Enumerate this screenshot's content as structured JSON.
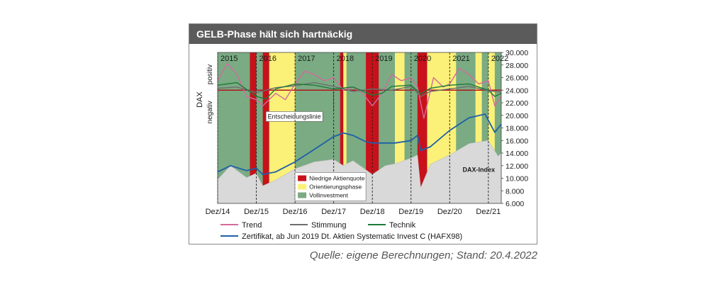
{
  "title": "GELB-Phase hält sich hartnäckig",
  "source": "Quelle: eigene Berechnungen; Stand: 20.4.2022",
  "colors": {
    "red": "#c8111a",
    "yellow": "#fbf178",
    "green": "#7aab83",
    "dax_fill": "#d9d9d9",
    "trend": "#d46a9c",
    "stimmung": "#6e6e6e",
    "technik": "#1d7a3a",
    "zertifikat": "#1f5fa7",
    "decision_line": "#b3141c"
  },
  "chart_data": {
    "type": "line",
    "x_range": [
      "2014-12",
      "2022-04"
    ],
    "ylim": [
      6000,
      30000
    ],
    "y_ticks": [
      "30.000",
      "28.000",
      "26.000",
      "24.000",
      "22.000",
      "20.000",
      "18.000",
      "16.000",
      "14.000",
      "12.000",
      "10.000",
      "8.000",
      "6.000"
    ],
    "x_ticks": [
      "Dez/14",
      "Dez/15",
      "Dez/16",
      "Dez/17",
      "Dez/18",
      "Dez/19",
      "Dez/20",
      "Dez/21"
    ],
    "year_labels": [
      "2015",
      "2016",
      "2017",
      "2018",
      "2019",
      "2020",
      "2021",
      "2022"
    ],
    "y_side_label": "DAX",
    "y_side_positive": "positiv",
    "y_side_negative": "negativ",
    "decision_line_label": "Entscheidungslinie",
    "decision_level": 24000,
    "dax_label": "DAX-Index",
    "phases": [
      {
        "phase": "green",
        "start": "2014-12",
        "end": "2015-10"
      },
      {
        "phase": "red",
        "start": "2015-10",
        "end": "2015-12"
      },
      {
        "phase": "green",
        "start": "2015-12",
        "end": "2016-02"
      },
      {
        "phase": "red",
        "start": "2016-02",
        "end": "2016-04"
      },
      {
        "phase": "yellow",
        "start": "2016-04",
        "end": "2016-12"
      },
      {
        "phase": "green",
        "start": "2016-12",
        "end": "2018-02"
      },
      {
        "phase": "red",
        "start": "2018-02",
        "end": "2018-03"
      },
      {
        "phase": "yellow",
        "start": "2018-03",
        "end": "2018-04"
      },
      {
        "phase": "green",
        "start": "2018-04",
        "end": "2018-10"
      },
      {
        "phase": "red",
        "start": "2018-10",
        "end": "2019-02"
      },
      {
        "phase": "green",
        "start": "2019-02",
        "end": "2019-07"
      },
      {
        "phase": "yellow",
        "start": "2019-07",
        "end": "2019-10"
      },
      {
        "phase": "green",
        "start": "2019-10",
        "end": "2020-02"
      },
      {
        "phase": "red",
        "start": "2020-02",
        "end": "2020-05"
      },
      {
        "phase": "yellow",
        "start": "2020-05",
        "end": "2021-02"
      },
      {
        "phase": "green",
        "start": "2021-02",
        "end": "2021-08"
      },
      {
        "phase": "yellow",
        "start": "2021-08",
        "end": "2021-10"
      },
      {
        "phase": "green",
        "start": "2021-10",
        "end": "2021-12"
      },
      {
        "phase": "yellow",
        "start": "2021-12",
        "end": "2022-02"
      },
      {
        "phase": "green",
        "start": "2022-02",
        "end": "2022-04"
      }
    ],
    "series": [
      {
        "name": "DAX-Index",
        "kind": "area",
        "x": [
          "2014-12",
          "2015-04",
          "2015-09",
          "2015-12",
          "2016-02",
          "2016-06",
          "2016-12",
          "2017-06",
          "2017-12",
          "2018-03",
          "2018-06",
          "2018-12",
          "2019-04",
          "2019-07",
          "2019-12",
          "2020-02",
          "2020-03",
          "2020-06",
          "2020-12",
          "2021-06",
          "2021-12",
          "2022-03",
          "2022-04"
        ],
        "values": [
          9800,
          12000,
          10100,
          10800,
          8800,
          9700,
          11500,
          12600,
          13000,
          12000,
          12800,
          10600,
          12000,
          12300,
          13200,
          13700,
          8500,
          12200,
          13700,
          15500,
          16000,
          13500,
          14000
        ]
      },
      {
        "name": "Zertifikat, ab Jun 2019 Dt. Aktien Systematic Invest C (HAFX98)",
        "kind": "line",
        "x": [
          "2014-12",
          "2015-04",
          "2015-09",
          "2015-12",
          "2016-02",
          "2016-06",
          "2016-12",
          "2017-06",
          "2017-12",
          "2018-03",
          "2018-06",
          "2018-10",
          "2018-12",
          "2019-04",
          "2019-07",
          "2019-12",
          "2020-02",
          "2020-03",
          "2020-06",
          "2020-12",
          "2021-06",
          "2021-11",
          "2021-12",
          "2022-02",
          "2022-04"
        ],
        "values": [
          11000,
          12000,
          11200,
          11600,
          10600,
          11000,
          12600,
          14600,
          16600,
          17200,
          16800,
          15800,
          15600,
          15600,
          15600,
          16000,
          16800,
          14400,
          15000,
          17600,
          19600,
          20200,
          19200,
          17300,
          18600
        ]
      },
      {
        "name": "Trend",
        "kind": "line",
        "x": [
          "2014-12",
          "2015-03",
          "2015-06",
          "2015-09",
          "2015-12",
          "2016-02",
          "2016-06",
          "2016-09",
          "2016-12",
          "2017-03",
          "2017-06",
          "2017-09",
          "2017-12",
          "2018-03",
          "2018-06",
          "2018-09",
          "2018-12",
          "2019-03",
          "2019-06",
          "2019-09",
          "2019-12",
          "2020-02",
          "2020-04",
          "2020-07",
          "2020-10",
          "2020-12",
          "2021-03",
          "2021-06",
          "2021-09",
          "2021-12",
          "2022-02",
          "2022-04"
        ],
        "values": [
          25500,
          28300,
          26500,
          23000,
          22500,
          21500,
          23500,
          22500,
          25000,
          27000,
          26500,
          25500,
          26000,
          24000,
          24500,
          23500,
          21500,
          23500,
          26500,
          25500,
          26000,
          24500,
          19500,
          26000,
          24500,
          25000,
          27500,
          26500,
          25000,
          25500,
          21500,
          23000
        ]
      },
      {
        "name": "Stimmung",
        "kind": "line",
        "x": [
          "2014-12",
          "2015-06",
          "2015-12",
          "2016-06",
          "2016-12",
          "2017-06",
          "2017-12",
          "2018-06",
          "2018-12",
          "2019-06",
          "2019-12",
          "2020-03",
          "2020-06",
          "2020-12",
          "2021-06",
          "2021-12",
          "2022-04"
        ],
        "values": [
          24300,
          24500,
          23600,
          24400,
          24700,
          25200,
          24600,
          23800,
          24200,
          24000,
          24600,
          23000,
          23800,
          24200,
          24600,
          23900,
          23700
        ]
      },
      {
        "name": "Technik",
        "kind": "line",
        "x": [
          "2014-12",
          "2015-06",
          "2015-12",
          "2016-03",
          "2016-06",
          "2016-12",
          "2017-06",
          "2017-12",
          "2018-06",
          "2018-12",
          "2019-03",
          "2019-06",
          "2019-12",
          "2020-03",
          "2020-06",
          "2020-12",
          "2021-06",
          "2021-12",
          "2022-02",
          "2022-04"
        ],
        "values": [
          24800,
          25200,
          23000,
          22600,
          24200,
          25000,
          24800,
          24200,
          24500,
          23200,
          23500,
          24600,
          24800,
          23400,
          24300,
          24800,
          25000,
          24000,
          23000,
          23500
        ]
      }
    ],
    "legend_phases": [
      {
        "label": "Niedrige Aktienquote",
        "phase": "red"
      },
      {
        "label": "Orientierungsphase",
        "phase": "yellow"
      },
      {
        "label": "Vollinvestment",
        "phase": "green"
      }
    ],
    "legend_lines": [
      "Trend",
      "Stimmung",
      "Technik"
    ],
    "legend_zertifikat": "Zertifikat, ab Jun 2019 Dt. Aktien Systematic Invest C (HAFX98)"
  }
}
